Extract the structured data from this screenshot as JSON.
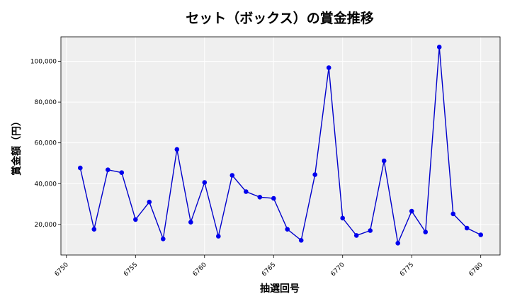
{
  "chart_data": {
    "type": "line",
    "title": "セット（ボックス）の賞金推移",
    "xlabel": "抽選回号",
    "ylabel": "賞金額（円）",
    "x": [
      6751,
      6752,
      6753,
      6754,
      6755,
      6756,
      6757,
      6758,
      6759,
      6760,
      6761,
      6762,
      6763,
      6764,
      6765,
      6766,
      6767,
      6768,
      6769,
      6770,
      6771,
      6772,
      6773,
      6774,
      6775,
      6776,
      6777,
      6778,
      6779,
      6780
    ],
    "y": [
      47700,
      17600,
      46800,
      45400,
      22400,
      31000,
      12900,
      56800,
      21100,
      40600,
      14200,
      44100,
      36100,
      33400,
      32800,
      17600,
      12200,
      44400,
      96900,
      23100,
      14600,
      17000,
      51200,
      10800,
      26500,
      16300,
      107000,
      25200,
      18200,
      14900
    ],
    "xlim": [
      6749.6,
      6781.4
    ],
    "ylim": [
      5000,
      112000
    ],
    "xticks": [
      6750,
      6755,
      6760,
      6765,
      6770,
      6775,
      6780
    ],
    "yticks": [
      20000,
      40000,
      60000,
      80000,
      100000
    ],
    "ytick_labels": [
      "20,000",
      "40,000",
      "60,000",
      "80,000",
      "100,000"
    ],
    "grid": true,
    "colors": {
      "line": "#0000cc",
      "marker": "#0000ee",
      "plot_bg": "#efefef",
      "grid": "#ffffff"
    }
  }
}
